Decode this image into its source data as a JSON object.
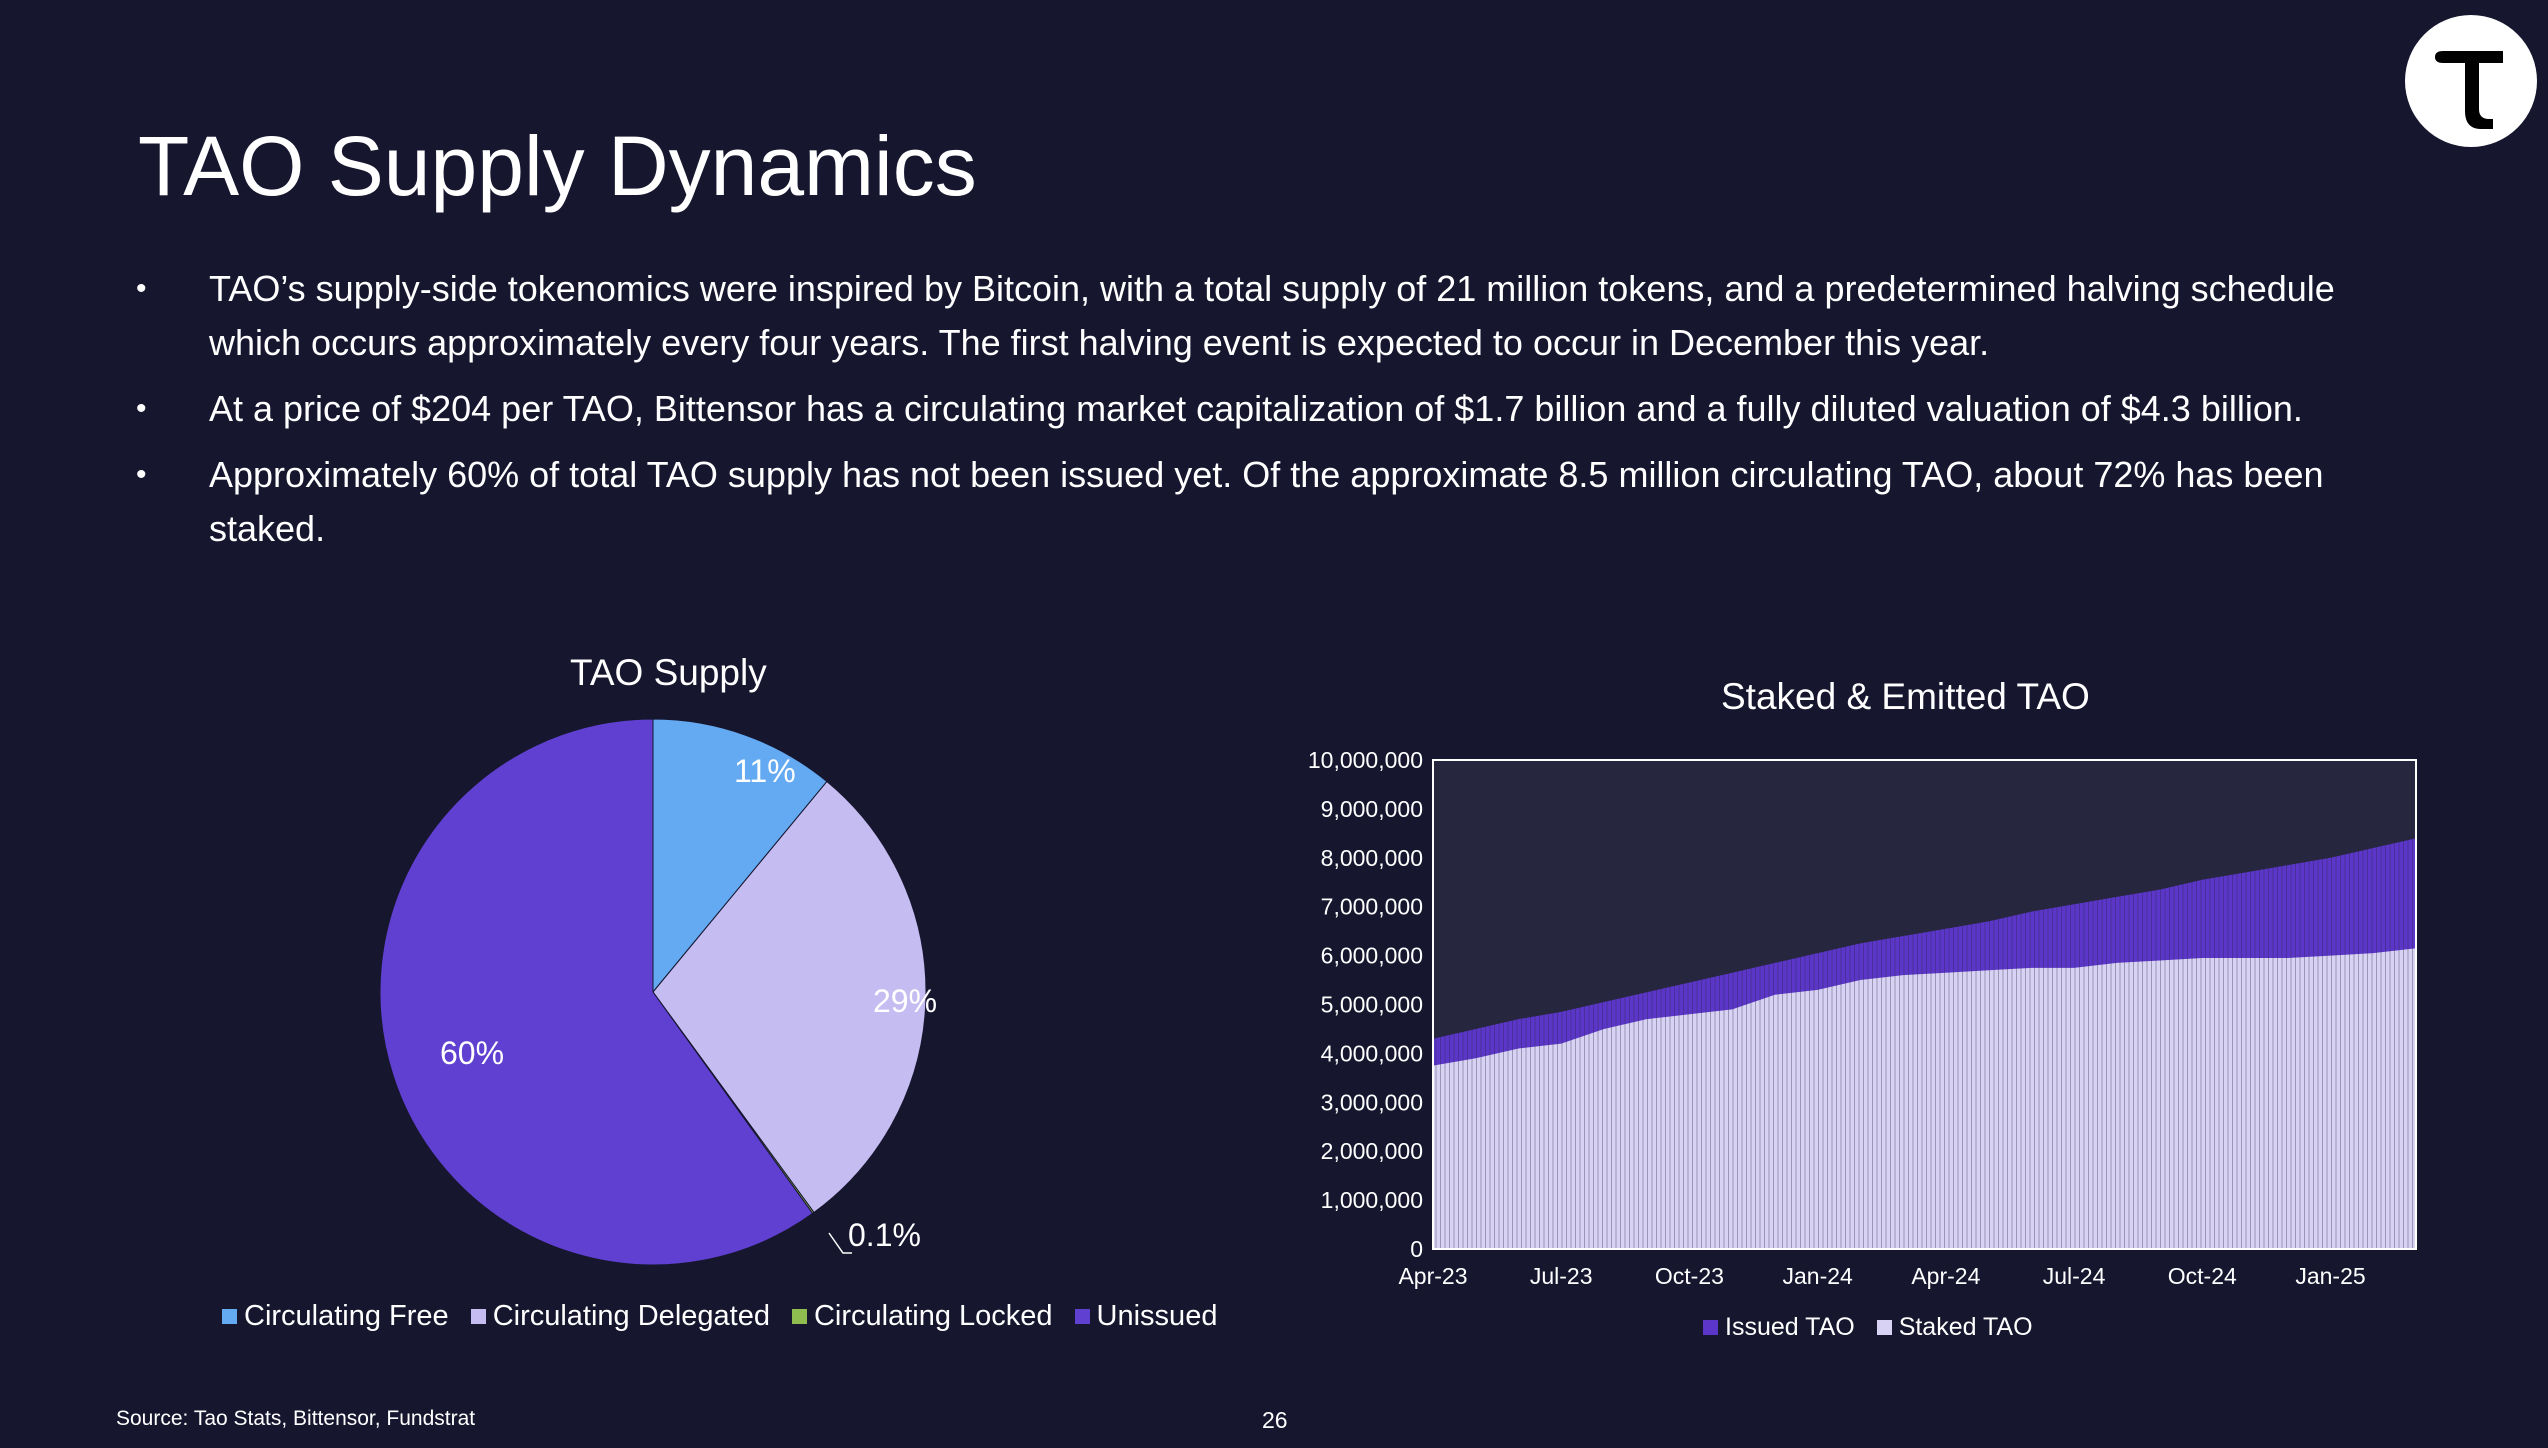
{
  "slide": {
    "title": "TAO Supply Dynamics",
    "logo_glyph": "T",
    "bullets": [
      "TAO’s supply-side tokenomics were inspired by Bitcoin, with a total supply of 21 million tokens, and a predetermined halving schedule which occurs approximately every four years. The first halving event is expected to occur in December this year.",
      "At a price of $204 per TAO, Bittensor has a circulating market capitalization of $1.7 billion and a fully diluted valuation of $4.3 billion.",
      "Approximately 60% of total TAO supply has not been issued yet. Of the approximate 8.5 million circulating TAO, about 72% has been staked."
    ],
    "bullet_char": "•",
    "source": "Source: Tao Stats, Bittensor, Fundstrat",
    "page_number": "26"
  },
  "chart_data": [
    {
      "type": "pie",
      "title": "TAO Supply",
      "slices": [
        {
          "name": "Circulating Free",
          "value": 11,
          "label": "11%",
          "color": "#63aaf2"
        },
        {
          "name": "Circulating Delegated",
          "value": 29,
          "label": "29%",
          "color": "#c5bcf2"
        },
        {
          "name": "Circulating Locked",
          "value": 0.1,
          "label": "0.1%",
          "color": "#8fbd4f"
        },
        {
          "name": "Unissued",
          "value": 60,
          "label": "60%",
          "color": "#6040d0"
        }
      ],
      "legend_position": "bottom"
    },
    {
      "type": "area",
      "title": "Staked & Emitted TAO",
      "xlabel": "",
      "ylabel": "",
      "ylim": [
        0,
        10000000
      ],
      "y_ticks": [
        "0",
        "1,000,000",
        "2,000,000",
        "3,000,000",
        "4,000,000",
        "5,000,000",
        "6,000,000",
        "7,000,000",
        "8,000,000",
        "9,000,000",
        "10,000,000"
      ],
      "x_ticks": [
        "Apr-23",
        "Jul-23",
        "Oct-23",
        "Jan-24",
        "Apr-24",
        "Jul-24",
        "Oct-24",
        "Jan-25"
      ],
      "x": [
        "Apr-23",
        "May-23",
        "Jun-23",
        "Jul-23",
        "Aug-23",
        "Sep-23",
        "Oct-23",
        "Nov-23",
        "Dec-23",
        "Jan-24",
        "Feb-24",
        "Mar-24",
        "Apr-24",
        "May-24",
        "Jun-24",
        "Jul-24",
        "Aug-24",
        "Sep-24",
        "Oct-24",
        "Nov-24",
        "Dec-24",
        "Jan-25",
        "Feb-25",
        "Mar-25"
      ],
      "series": [
        {
          "name": "Issued TAO",
          "color": "#5b36c9",
          "values": [
            4300000,
            4500000,
            4700000,
            4850000,
            5050000,
            5250000,
            5450000,
            5650000,
            5850000,
            6050000,
            6250000,
            6400000,
            6550000,
            6700000,
            6900000,
            7050000,
            7200000,
            7350000,
            7550000,
            7700000,
            7850000,
            8000000,
            8200000,
            8400000
          ]
        },
        {
          "name": "Staked TAO",
          "color": "#d8d3f5",
          "values": [
            3750000,
            3900000,
            4100000,
            4200000,
            4500000,
            4700000,
            4800000,
            4900000,
            5200000,
            5300000,
            5500000,
            5600000,
            5650000,
            5700000,
            5750000,
            5750000,
            5850000,
            5900000,
            5950000,
            5950000,
            5950000,
            6000000,
            6050000,
            6150000
          ]
        }
      ],
      "grid": false,
      "legend_position": "bottom",
      "plot_background": "#26263e"
    }
  ]
}
